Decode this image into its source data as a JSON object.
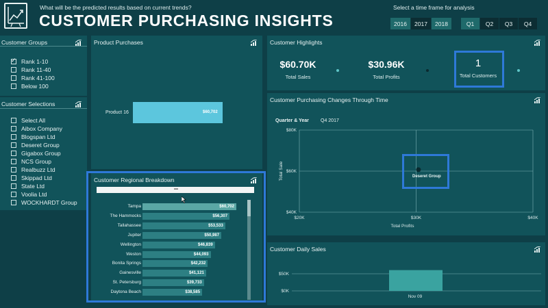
{
  "header": {
    "question": "What will be the predicted results based on current trends?",
    "title": "CUSTOMER PURCHASING INSIGHTS",
    "timeframe_label": "Select a time frame for analysis",
    "years": [
      "2016",
      "2017",
      "2018"
    ],
    "quarters": [
      "Q1",
      "Q2",
      "Q3",
      "Q4"
    ],
    "logo_icon": "chart-trend-icon"
  },
  "customer_groups": {
    "title": "Customer Groups",
    "items": [
      {
        "label": "Rank 1-10",
        "checked": true
      },
      {
        "label": "Rank 11-40",
        "checked": false
      },
      {
        "label": "Rank 41-100",
        "checked": false
      },
      {
        "label": "Below 100",
        "checked": false
      }
    ]
  },
  "customer_selections": {
    "title": "Customer Selections",
    "items": [
      "Select All",
      "Aibox Company",
      "Blogspan Ltd",
      "Deseret Group",
      "Gigabox Group",
      "NCS Group",
      "Realbuzz Ltd",
      "Skippad Ltd",
      "State Ltd",
      "Voolia Ltd",
      "WOCKHARDT Group"
    ]
  },
  "product_purchases": {
    "title": "Product Purchases",
    "product": "Product 16",
    "value": "$60,702"
  },
  "highlights": {
    "title": "Customer Highlights",
    "total_sales_value": "$60.70K",
    "total_sales_label": "Total Sales",
    "total_profits_value": "$30.96K",
    "total_profits_label": "Total Profits",
    "total_customers_value": "1",
    "total_customers_label": "Total Customers"
  },
  "changes": {
    "title": "Customer Purchasing Changes Through Time",
    "legend_label": "Quarter & Year",
    "legend_value": "Q4 2017",
    "point_label": "Deseret Group"
  },
  "chart_data": [
    {
      "type": "scatter",
      "title": "Customer Purchasing Changes Through Time",
      "xlabel": "Total Profits",
      "ylabel": "Total Sale",
      "x_ticks": [
        "$20K",
        "$30K",
        "$40K"
      ],
      "y_ticks": [
        "$80K",
        "$60K",
        "$40K"
      ],
      "xlim": [
        20000,
        40000
      ],
      "ylim": [
        40000,
        80000
      ],
      "points": [
        {
          "label": "Deseret Group",
          "x": 30960,
          "y": 60702
        }
      ]
    },
    {
      "type": "bar",
      "title": "Customer Regional Breakdown",
      "categories": [
        "Tampa",
        "The Hammocks",
        "Tallahassee",
        "Jupiter",
        "Wellington",
        "Weston",
        "Bonita Springs",
        "Gainesville",
        "St. Petersburg",
        "Daytona Beach"
      ],
      "values": [
        60702,
        56307,
        53533,
        50987,
        46839,
        44093,
        42232,
        41121,
        39733,
        38585
      ],
      "value_labels": [
        "$60,702",
        "$56,307",
        "$53,533",
        "$50,987",
        "$46,839",
        "$44,093",
        "$42,232",
        "$41,121",
        "$39,733",
        "$38,585"
      ]
    },
    {
      "type": "bar",
      "title": "Customer Daily Sales",
      "categories": [
        "Nov 09"
      ],
      "values": [
        60702
      ],
      "y_ticks": [
        "$50K",
        "$0K"
      ],
      "ylim": [
        0,
        70000
      ]
    }
  ],
  "regional": {
    "title": "Customer Regional Breakdown"
  },
  "daily": {
    "title": "Customer Daily Sales",
    "x_label": "Nov 09"
  },
  "colors": {
    "accent": "#2e79d8",
    "bar": "#5fc5c7",
    "panel": "#11535a",
    "background": "#0e3f47"
  }
}
